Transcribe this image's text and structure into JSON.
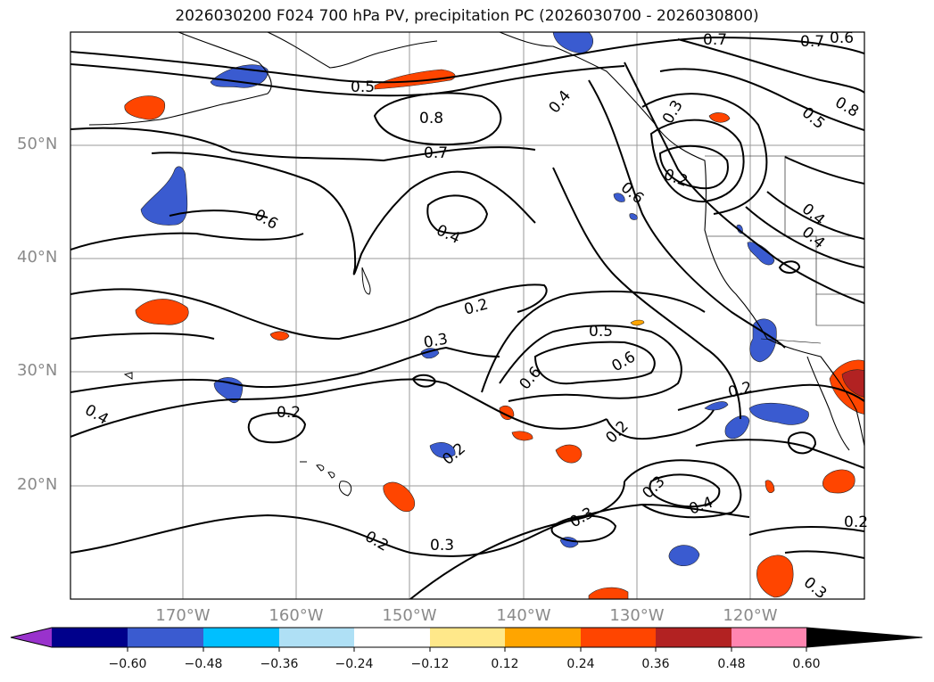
{
  "title": "2026030200 F024 700 hPa PV, precipitation PC (2026030700 - 2026030800)",
  "latitude_labels": [
    "50°N",
    "40°N",
    "30°N",
    "20°N"
  ],
  "longitude_labels": [
    "170°W",
    "160°W",
    "150°W",
    "140°W",
    "130°W",
    "120°W"
  ],
  "contour_labels": [
    "0.7",
    "0.7",
    "0.6",
    "0.8",
    "0.5",
    "0.5",
    "0.8",
    "0.7",
    "0.4",
    "0.3",
    "0.2",
    "0.6",
    "0.4",
    "0.4",
    "0.6",
    "0.4",
    "0.3",
    "0.5",
    "0.6",
    "0.6",
    "0.2",
    "0.2",
    "0.2",
    "0.2",
    "0.4",
    "0.2",
    "0.3",
    "0.4",
    "0.3",
    "0.3",
    "0.2",
    "0.3",
    "0.2"
  ],
  "colorbar": {
    "ticks": [
      "−0.60",
      "−0.48",
      "−0.36",
      "−0.24",
      "−0.12",
      "0.12",
      "0.24",
      "0.36",
      "0.48",
      "0.60"
    ],
    "colors": [
      "#9932cc",
      "#00008b",
      "#3a5bd0",
      "#00bfff",
      "#afe0f5",
      "#ffffff",
      "#ffe88a",
      "#ffa500",
      "#ff4500",
      "#b22222",
      "#ff85b0"
    ]
  }
}
